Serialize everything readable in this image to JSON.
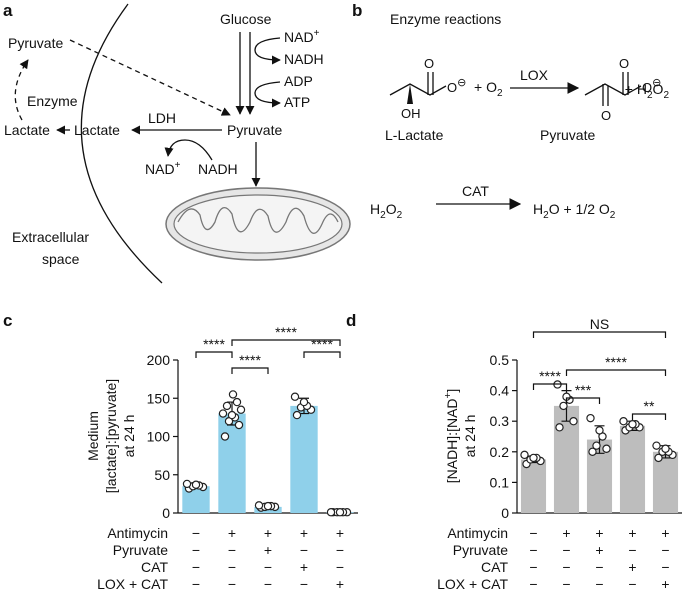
{
  "panel_labels": [
    "a",
    "b",
    "c",
    "d"
  ],
  "panel_a": {
    "glucose": "Glucose",
    "nad_top": [
      "NAD",
      {
        "sup": "+"
      }
    ],
    "nadh_top": "NADH",
    "adp": "ADP",
    "atp": "ATP",
    "pyruvate_out": "Pyruvate",
    "enzyme": "Enzyme",
    "lactate_out": "Lactate",
    "lactate_in": "Lactate",
    "ldh": "LDH",
    "pyruvate_in": "Pyruvate",
    "nad_bottom": [
      "NAD",
      {
        "sup": "+"
      }
    ],
    "nadh_bottom": "NADH",
    "extracellular": [
      "Extracellular",
      "space"
    ]
  },
  "panel_b": {
    "title": "Enzyme reactions",
    "lactate_atoms": [
      "O",
      [
        "O",
        {
          "sup": "⊖"
        }
      ],
      "OH"
    ],
    "o2": [
      "+ O",
      {
        "sub": "2"
      }
    ],
    "lox": "LOX",
    "pyruvate_atoms": [
      "O",
      [
        "O",
        {
          "sup": "⊖"
        }
      ],
      "O"
    ],
    "h2o2_product": [
      "+ H",
      {
        "sub": "2"
      },
      "O",
      {
        "sub": "2"
      }
    ],
    "l_lactate": "L-Lactate",
    "pyruvate": "Pyruvate",
    "h2o2": [
      "H",
      {
        "sub": "2"
      },
      "O",
      {
        "sub": "2"
      }
    ],
    "cat": "CAT",
    "products": [
      "H",
      {
        "sub": "2"
      },
      "O + 1/2 O",
      {
        "sub": "2"
      }
    ]
  },
  "chart_data": [
    {
      "type": "bar",
      "ylabel": [
        "Medium",
        "[lactate]:[pyruvate]",
        "at 24 h"
      ],
      "categories": [
        null,
        null,
        null,
        null,
        null
      ],
      "values": [
        35,
        130,
        8,
        140,
        1
      ],
      "errors": [
        3,
        15,
        2,
        10,
        0.5
      ],
      "points": [
        [
          32,
          34,
          35,
          36,
          37,
          38
        ],
        [
          100,
          115,
          120,
          125,
          128,
          130,
          135,
          140,
          145,
          155
        ],
        [
          7,
          8,
          8,
          9,
          9,
          10
        ],
        [
          128,
          135,
          138,
          140,
          145,
          152
        ],
        [
          1,
          1,
          1,
          1,
          1,
          1
        ]
      ],
      "color": "#8fd0ea",
      "ylim": [
        0,
        200
      ],
      "yticks": [
        0,
        50,
        100,
        150,
        200
      ],
      "conditions": [
        {
          "name": "Antimycin",
          "signs": [
            "−",
            "+",
            "+",
            "+",
            "+"
          ]
        },
        {
          "name": "Pyruvate",
          "signs": [
            "−",
            "−",
            "+",
            "−",
            "−"
          ]
        },
        {
          "name": "CAT",
          "signs": [
            "−",
            "−",
            "−",
            "+",
            "−"
          ]
        },
        {
          "name": "LOX + CAT",
          "signs": [
            "−",
            "−",
            "−",
            "−",
            "+"
          ]
        }
      ],
      "brackets": [
        {
          "from": 0,
          "to": 1,
          "label": "****"
        },
        {
          "from": 1,
          "to": 2,
          "label": "****"
        },
        {
          "from": 1,
          "to": 4,
          "label": "****"
        },
        {
          "from": 3,
          "to": 4,
          "label": "****"
        }
      ]
    },
    {
      "type": "bar",
      "ylabel": [
        [
          "[NADH]:[NAD",
          {
            "sup": "+"
          },
          "]"
        ],
        "at 24 h"
      ],
      "categories": [
        null,
        null,
        null,
        null,
        null
      ],
      "values": [
        0.175,
        0.35,
        0.24,
        0.285,
        0.2
      ],
      "errors": [
        0.01,
        0.05,
        0.045,
        0.015,
        0.02
      ],
      "points": [
        [
          0.16,
          0.17,
          0.175,
          0.18,
          0.18,
          0.19
        ],
        [
          0.28,
          0.3,
          0.35,
          0.37,
          0.38,
          0.42
        ],
        [
          0.2,
          0.21,
          0.22,
          0.25,
          0.27,
          0.31
        ],
        [
          0.27,
          0.28,
          0.28,
          0.29,
          0.29,
          0.3
        ],
        [
          0.18,
          0.19,
          0.2,
          0.2,
          0.21,
          0.22
        ]
      ],
      "color": "#bdbdbd",
      "ylim": [
        0,
        0.5
      ],
      "yticks": [
        0,
        0.1,
        0.2,
        0.3,
        0.4,
        0.5
      ],
      "conditions": [
        {
          "name": "Antimycin",
          "signs": [
            "−",
            "+",
            "+",
            "+",
            "+"
          ]
        },
        {
          "name": "Pyruvate",
          "signs": [
            "−",
            "−",
            "+",
            "−",
            "−"
          ]
        },
        {
          "name": "CAT",
          "signs": [
            "−",
            "−",
            "−",
            "+",
            "−"
          ]
        },
        {
          "name": "LOX + CAT",
          "signs": [
            "−",
            "−",
            "−",
            "−",
            "+"
          ]
        }
      ],
      "brackets": [
        {
          "from": 0,
          "to": 4,
          "label": "NS"
        },
        {
          "from": 0,
          "to": 1,
          "label": "****"
        },
        {
          "from": 1,
          "to": 2,
          "label": "***"
        },
        {
          "from": 1,
          "to": 4,
          "label": "****"
        },
        {
          "from": 3,
          "to": 4,
          "label": "**"
        }
      ]
    }
  ]
}
